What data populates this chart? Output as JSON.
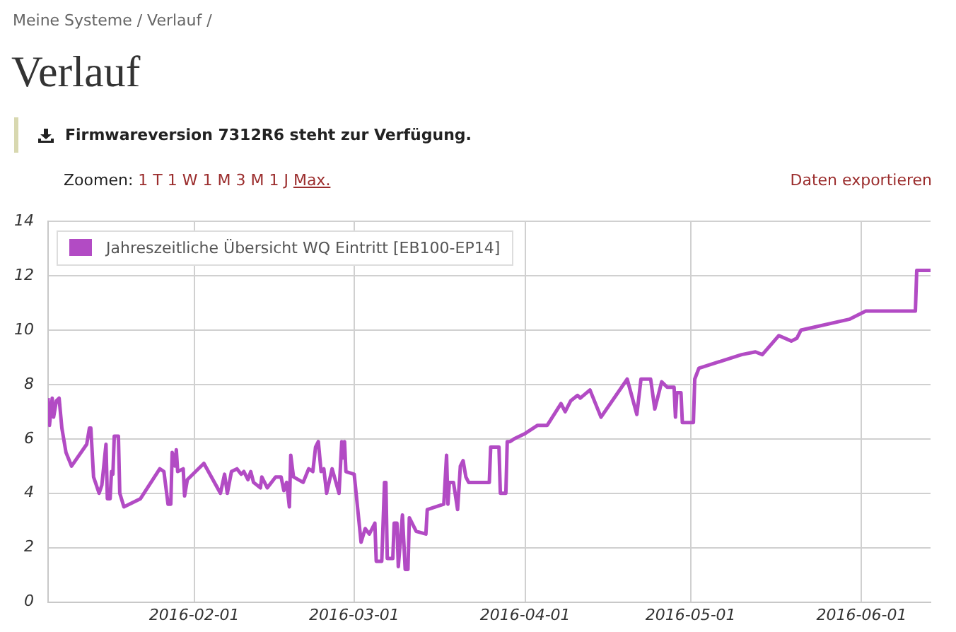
{
  "chart_data": {
    "type": "line",
    "title": "Verlauf",
    "annotations": [
      "Meine Systeme / Verlauf /",
      "Firmwareversion 7312R6 steht zur Verfügung.",
      "Zoomen:",
      "1 T 1 W 1 M 3 M 1 J",
      "Max.",
      "Daten exportieren"
    ],
    "x": [
      "2016-01-05T12:00",
      "2016-01-05T18:00",
      "2016-01-06T06:00",
      "2016-01-06T12:00",
      "2016-01-07T00:00",
      "2016-01-07T12:00",
      "2016-01-08T00:00",
      "2016-01-08T18:00",
      "2016-01-09T18:00",
      "2016-01-12T12:00",
      "2016-01-13T00:00",
      "2016-01-13T06:00",
      "2016-01-13T18:00",
      "2016-01-14T18:00",
      "2016-01-15T06:00",
      "2016-01-16T00:00",
      "2016-01-16T06:00",
      "2016-01-16T18:00",
      "2016-01-17T00:00",
      "2016-01-17T06:00",
      "2016-01-17T12:00",
      "2016-01-18T06:00",
      "2016-01-18T12:00",
      "2016-01-19T06:00",
      "2016-01-22T06:00",
      "2016-01-25T18:00",
      "2016-01-26T12:00",
      "2016-01-27T06:00",
      "2016-01-27T18:00",
      "2016-01-28T00:00",
      "2016-01-28T12:00",
      "2016-01-28T18:00",
      "2016-01-29T00:00",
      "2016-01-30T00:00",
      "2016-01-30T06:00",
      "2016-01-30T18:00",
      "2016-02-02T18:00",
      "2016-02-05T18:00",
      "2016-02-06T12:00",
      "2016-02-07T00:00",
      "2016-02-07T18:00",
      "2016-02-08T18:00",
      "2016-02-09T12:00",
      "2016-02-10T00:00",
      "2016-02-10T18:00",
      "2016-02-11T06:00",
      "2016-02-11T18:00",
      "2016-02-13T00:00",
      "2016-02-13T06:00",
      "2016-02-14T06:00",
      "2016-02-15T18:00",
      "2016-02-16T18:00",
      "2016-02-17T06:00",
      "2016-02-17T18:00",
      "2016-02-18T06:00",
      "2016-02-18T12:00",
      "2016-02-19T00:00",
      "2016-02-20T18:00",
      "2016-02-21T18:00",
      "2016-02-22T12:00",
      "2016-02-23T00:00",
      "2016-02-23T12:00",
      "2016-02-24T00:00",
      "2016-02-24T12:00",
      "2016-02-25T00:00",
      "2016-02-26T00:00",
      "2016-02-27T06:00",
      "2016-02-27T18:00",
      "2016-02-28T00:00",
      "2016-02-28T06:00",
      "2016-02-28T12:00",
      "2016-03-01T00:00",
      "2016-03-02T06:00",
      "2016-03-03T00:00",
      "2016-03-03T18:00",
      "2016-03-04T18:00",
      "2016-03-05T00:00",
      "2016-03-06T00:00",
      "2016-03-06T12:00",
      "2016-03-06T18:00",
      "2016-03-07T00:00",
      "2016-03-08T00:00",
      "2016-03-08T06:00",
      "2016-03-08T18:00",
      "2016-03-09T00:00",
      "2016-03-09T18:00",
      "2016-03-10T06:00",
      "2016-03-10T18:00",
      "2016-03-11T00:00",
      "2016-03-12T06:00",
      "2016-03-14T00:00",
      "2016-03-14T06:00",
      "2016-03-17T06:00",
      "2016-03-17T18:00",
      "2016-03-18T00:00",
      "2016-03-18T06:00",
      "2016-03-19T00:00",
      "2016-03-19T18:00",
      "2016-03-20T06:00",
      "2016-03-20T18:00",
      "2016-03-21T06:00",
      "2016-03-21T18:00",
      "2016-03-25T12:00",
      "2016-03-25T18:00",
      "2016-03-27T06:00",
      "2016-03-27T12:00",
      "2016-03-28T12:00",
      "2016-03-28T18:00",
      "2016-03-29T06:00",
      "2016-03-30T00:00",
      "2016-04-01T00:00",
      "2016-04-03T06:00",
      "2016-04-05T00:00",
      "2016-04-07T12:00",
      "2016-04-08T06:00",
      "2016-04-09T06:00",
      "2016-04-10T12:00",
      "2016-04-11T00:00",
      "2016-04-12T18:00",
      "2016-04-14T18:00",
      "2016-04-19T12:00",
      "2016-04-21T06:00",
      "2016-04-22T00:00",
      "2016-04-23T18:00",
      "2016-04-24T12:00",
      "2016-04-25T18:00",
      "2016-04-26T18:00",
      "2016-04-28T00:00",
      "2016-04-28T06:00",
      "2016-04-28T12:00",
      "2016-04-29T06:00",
      "2016-04-29T12:00",
      "2016-05-01T12:00",
      "2016-05-01T18:00",
      "2016-05-02T12:00",
      "2016-05-10T06:00",
      "2016-05-12T18:00",
      "2016-05-14T00:00",
      "2016-05-17T00:00",
      "2016-05-19T06:00",
      "2016-05-20T06:00",
      "2016-05-21T00:00",
      "2016-05-29T18:00",
      "2016-06-01T18:00",
      "2016-06-10T18:00",
      "2016-06-11T00:00",
      "2016-06-13T12:00"
    ],
    "series": [
      {
        "name": "Jahreszeitliche Übersicht WQ Eintritt [EB100-EP14]",
        "color": "#b24bc4",
        "values": [
          7.5,
          6.5,
          7.5,
          6.8,
          7.4,
          7.5,
          6.4,
          5.5,
          5.0,
          5.8,
          6.4,
          6.4,
          4.6,
          4.0,
          4.3,
          5.8,
          3.8,
          3.8,
          4.8,
          4.7,
          6.1,
          6.1,
          4.0,
          3.5,
          3.8,
          4.9,
          4.8,
          3.6,
          3.6,
          5.5,
          5.0,
          5.6,
          4.8,
          4.9,
          3.9,
          4.5,
          5.1,
          4.0,
          4.7,
          4.0,
          4.8,
          4.9,
          4.7,
          4.8,
          4.5,
          4.8,
          4.4,
          4.2,
          4.6,
          4.2,
          4.6,
          4.6,
          4.1,
          4.4,
          3.5,
          5.4,
          4.6,
          4.4,
          4.9,
          4.8,
          5.7,
          5.9,
          4.8,
          4.9,
          4.0,
          4.9,
          4.0,
          5.9,
          5.3,
          5.9,
          4.8,
          4.7,
          2.2,
          2.7,
          2.5,
          2.9,
          1.5,
          1.5,
          4.4,
          4.4,
          1.6,
          1.6,
          2.9,
          2.9,
          1.3,
          3.2,
          1.2,
          1.2,
          3.1,
          2.6,
          2.5,
          3.4,
          3.6,
          5.4,
          3.6,
          4.4,
          4.4,
          3.4,
          5.0,
          5.2,
          4.6,
          4.4,
          4.4,
          5.7,
          5.7,
          4.0,
          4.0,
          5.9,
          5.9,
          6.0,
          6.2,
          6.5,
          6.5,
          7.3,
          7.0,
          7.4,
          7.6,
          7.5,
          7.8,
          6.8,
          8.2,
          6.9,
          8.2,
          8.2,
          7.1,
          8.1,
          7.9,
          7.9,
          6.8,
          7.7,
          7.7,
          6.6,
          6.6,
          8.2,
          8.6,
          9.1,
          9.2,
          9.1,
          9.8,
          9.6,
          9.7,
          10.0,
          10.4,
          10.7,
          10.7,
          12.2,
          12.2
        ]
      }
    ],
    "xlim": [
      "2016-01-05T12:00",
      "2016-06-13T12:00"
    ],
    "xticks": [
      "2016-02-01",
      "2016-03-01",
      "2016-04-01",
      "2016-05-01",
      "2016-06-01"
    ],
    "ylim": [
      0,
      14
    ],
    "yticks": [
      0,
      2,
      4,
      6,
      8,
      10,
      12,
      14
    ],
    "grid": true,
    "legend": "top left",
    "marker": "none",
    "line_style": "solid"
  }
}
